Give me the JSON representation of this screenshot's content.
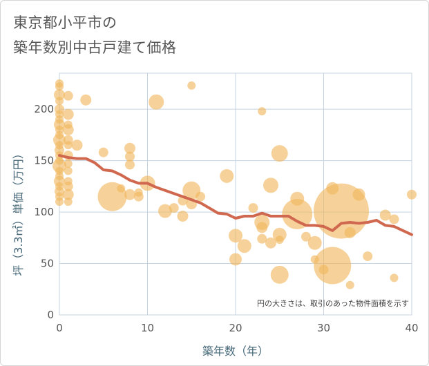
{
  "chart_data": {
    "type": "scatter",
    "title": [
      "東京都小平市の",
      "築年数別中古戸建て価格"
    ],
    "xlabel": "築年数（年）",
    "ylabel": "坪（3.3㎡）単価（万円）",
    "xlim": [
      0,
      40
    ],
    "ylim": [
      0,
      235
    ],
    "xticks": [
      0,
      10,
      20,
      30,
      40
    ],
    "yticks": [
      0,
      50,
      100,
      150,
      200
    ],
    "grid": true,
    "note": "円の大きさは、取引のあった物件面積を示す",
    "colors": {
      "bubble": "#f1b75c",
      "trend": "#d0684f",
      "grid": "#c5d3e0"
    },
    "trend": {
      "x": [
        0,
        1,
        2,
        3,
        4,
        5,
        6,
        7,
        8,
        9,
        10,
        11,
        12,
        13,
        14,
        15,
        16,
        17,
        18,
        19,
        20,
        21,
        22,
        23,
        24,
        25,
        26,
        27,
        28,
        29,
        30,
        31,
        32,
        33,
        34,
        35,
        36,
        37,
        38,
        39,
        40
      ],
      "y": [
        155,
        153,
        152,
        152,
        148,
        141,
        140,
        136,
        131,
        128,
        128,
        124,
        121,
        118,
        115,
        112,
        109,
        104,
        99,
        98,
        94,
        96,
        96,
        99,
        96,
        96,
        96,
        91,
        87,
        87,
        86,
        82,
        89,
        90,
        89,
        90,
        92,
        87,
        86,
        82,
        78
      ]
    },
    "points": [
      {
        "x": 0,
        "y": 225,
        "s": 6
      },
      {
        "x": 0,
        "y": 222,
        "s": 6
      },
      {
        "x": 0,
        "y": 214,
        "s": 8
      },
      {
        "x": 0,
        "y": 208,
        "s": 6
      },
      {
        "x": 0,
        "y": 200,
        "s": 7
      },
      {
        "x": 0,
        "y": 195,
        "s": 6
      },
      {
        "x": 0,
        "y": 190,
        "s": 6
      },
      {
        "x": 0,
        "y": 185,
        "s": 8
      },
      {
        "x": 0,
        "y": 180,
        "s": 6
      },
      {
        "x": 0,
        "y": 175,
        "s": 6
      },
      {
        "x": 0,
        "y": 170,
        "s": 9
      },
      {
        "x": 0,
        "y": 165,
        "s": 6
      },
      {
        "x": 0,
        "y": 160,
        "s": 7
      },
      {
        "x": 0,
        "y": 155,
        "s": 6
      },
      {
        "x": 0,
        "y": 150,
        "s": 6
      },
      {
        "x": 0,
        "y": 145,
        "s": 10
      },
      {
        "x": 0,
        "y": 140,
        "s": 6
      },
      {
        "x": 0,
        "y": 135,
        "s": 6
      },
      {
        "x": 0,
        "y": 130,
        "s": 8
      },
      {
        "x": 0,
        "y": 125,
        "s": 6
      },
      {
        "x": 0,
        "y": 120,
        "s": 7
      },
      {
        "x": 0,
        "y": 115,
        "s": 6
      },
      {
        "x": 0,
        "y": 110,
        "s": 6
      },
      {
        "x": 1,
        "y": 213,
        "s": 7
      },
      {
        "x": 1,
        "y": 195,
        "s": 8
      },
      {
        "x": 1,
        "y": 185,
        "s": 6
      },
      {
        "x": 1,
        "y": 180,
        "s": 8
      },
      {
        "x": 1,
        "y": 170,
        "s": 7
      },
      {
        "x": 1,
        "y": 165,
        "s": 6
      },
      {
        "x": 1,
        "y": 155,
        "s": 7
      },
      {
        "x": 1,
        "y": 147,
        "s": 6
      },
      {
        "x": 1,
        "y": 140,
        "s": 6
      },
      {
        "x": 1,
        "y": 130,
        "s": 6
      },
      {
        "x": 1,
        "y": 125,
        "s": 7
      },
      {
        "x": 1,
        "y": 117,
        "s": 8
      },
      {
        "x": 1,
        "y": 110,
        "s": 6
      },
      {
        "x": 2,
        "y": 165,
        "s": 8
      },
      {
        "x": 3,
        "y": 209,
        "s": 8
      },
      {
        "x": 5,
        "y": 158,
        "s": 7
      },
      {
        "x": 6,
        "y": 115,
        "s": 21
      },
      {
        "x": 7,
        "y": 123,
        "s": 6
      },
      {
        "x": 8,
        "y": 162,
        "s": 8
      },
      {
        "x": 8,
        "y": 154,
        "s": 7
      },
      {
        "x": 8,
        "y": 146,
        "s": 7
      },
      {
        "x": 8,
        "y": 117,
        "s": 8
      },
      {
        "x": 9,
        "y": 115,
        "s": 7
      },
      {
        "x": 9,
        "y": 119,
        "s": 6
      },
      {
        "x": 10,
        "y": 128,
        "s": 11
      },
      {
        "x": 11,
        "y": 207,
        "s": 11
      },
      {
        "x": 12,
        "y": 101,
        "s": 10
      },
      {
        "x": 13,
        "y": 104,
        "s": 7
      },
      {
        "x": 14,
        "y": 96,
        "s": 8
      },
      {
        "x": 14,
        "y": 111,
        "s": 7
      },
      {
        "x": 15,
        "y": 223,
        "s": 6
      },
      {
        "x": 15,
        "y": 121,
        "s": 13
      },
      {
        "x": 15,
        "y": 108,
        "s": 8
      },
      {
        "x": 16,
        "y": 115,
        "s": 7
      },
      {
        "x": 19,
        "y": 135,
        "s": 10
      },
      {
        "x": 20,
        "y": 77,
        "s": 10
      },
      {
        "x": 20,
        "y": 54,
        "s": 9
      },
      {
        "x": 21,
        "y": 67,
        "s": 10
      },
      {
        "x": 22,
        "y": 104,
        "s": 7
      },
      {
        "x": 23,
        "y": 198,
        "s": 6
      },
      {
        "x": 23,
        "y": 90,
        "s": 11
      },
      {
        "x": 23,
        "y": 85,
        "s": 8
      },
      {
        "x": 23,
        "y": 74,
        "s": 7
      },
      {
        "x": 24,
        "y": 126,
        "s": 11
      },
      {
        "x": 24,
        "y": 70,
        "s": 8
      },
      {
        "x": 25,
        "y": 157,
        "s": 12
      },
      {
        "x": 25,
        "y": 78,
        "s": 10
      },
      {
        "x": 25,
        "y": 73,
        "s": 6
      },
      {
        "x": 25,
        "y": 39,
        "s": 13
      },
      {
        "x": 27,
        "y": 113,
        "s": 10
      },
      {
        "x": 27,
        "y": 98,
        "s": 22
      },
      {
        "x": 28,
        "y": 76,
        "s": 7
      },
      {
        "x": 29,
        "y": 70,
        "s": 10
      },
      {
        "x": 29,
        "y": 54,
        "s": 6
      },
      {
        "x": 30,
        "y": 44,
        "s": 7
      },
      {
        "x": 31,
        "y": 48,
        "s": 27
      },
      {
        "x": 32,
        "y": 101,
        "s": 40
      },
      {
        "x": 31,
        "y": 123,
        "s": 9
      },
      {
        "x": 33,
        "y": 80,
        "s": 8
      },
      {
        "x": 33,
        "y": 29,
        "s": 6
      },
      {
        "x": 34,
        "y": 117,
        "s": 9
      },
      {
        "x": 35,
        "y": 57,
        "s": 7
      },
      {
        "x": 37,
        "y": 97,
        "s": 8
      },
      {
        "x": 38,
        "y": 93,
        "s": 7
      },
      {
        "x": 38,
        "y": 36,
        "s": 6
      },
      {
        "x": 40,
        "y": 117,
        "s": 7
      }
    ]
  }
}
